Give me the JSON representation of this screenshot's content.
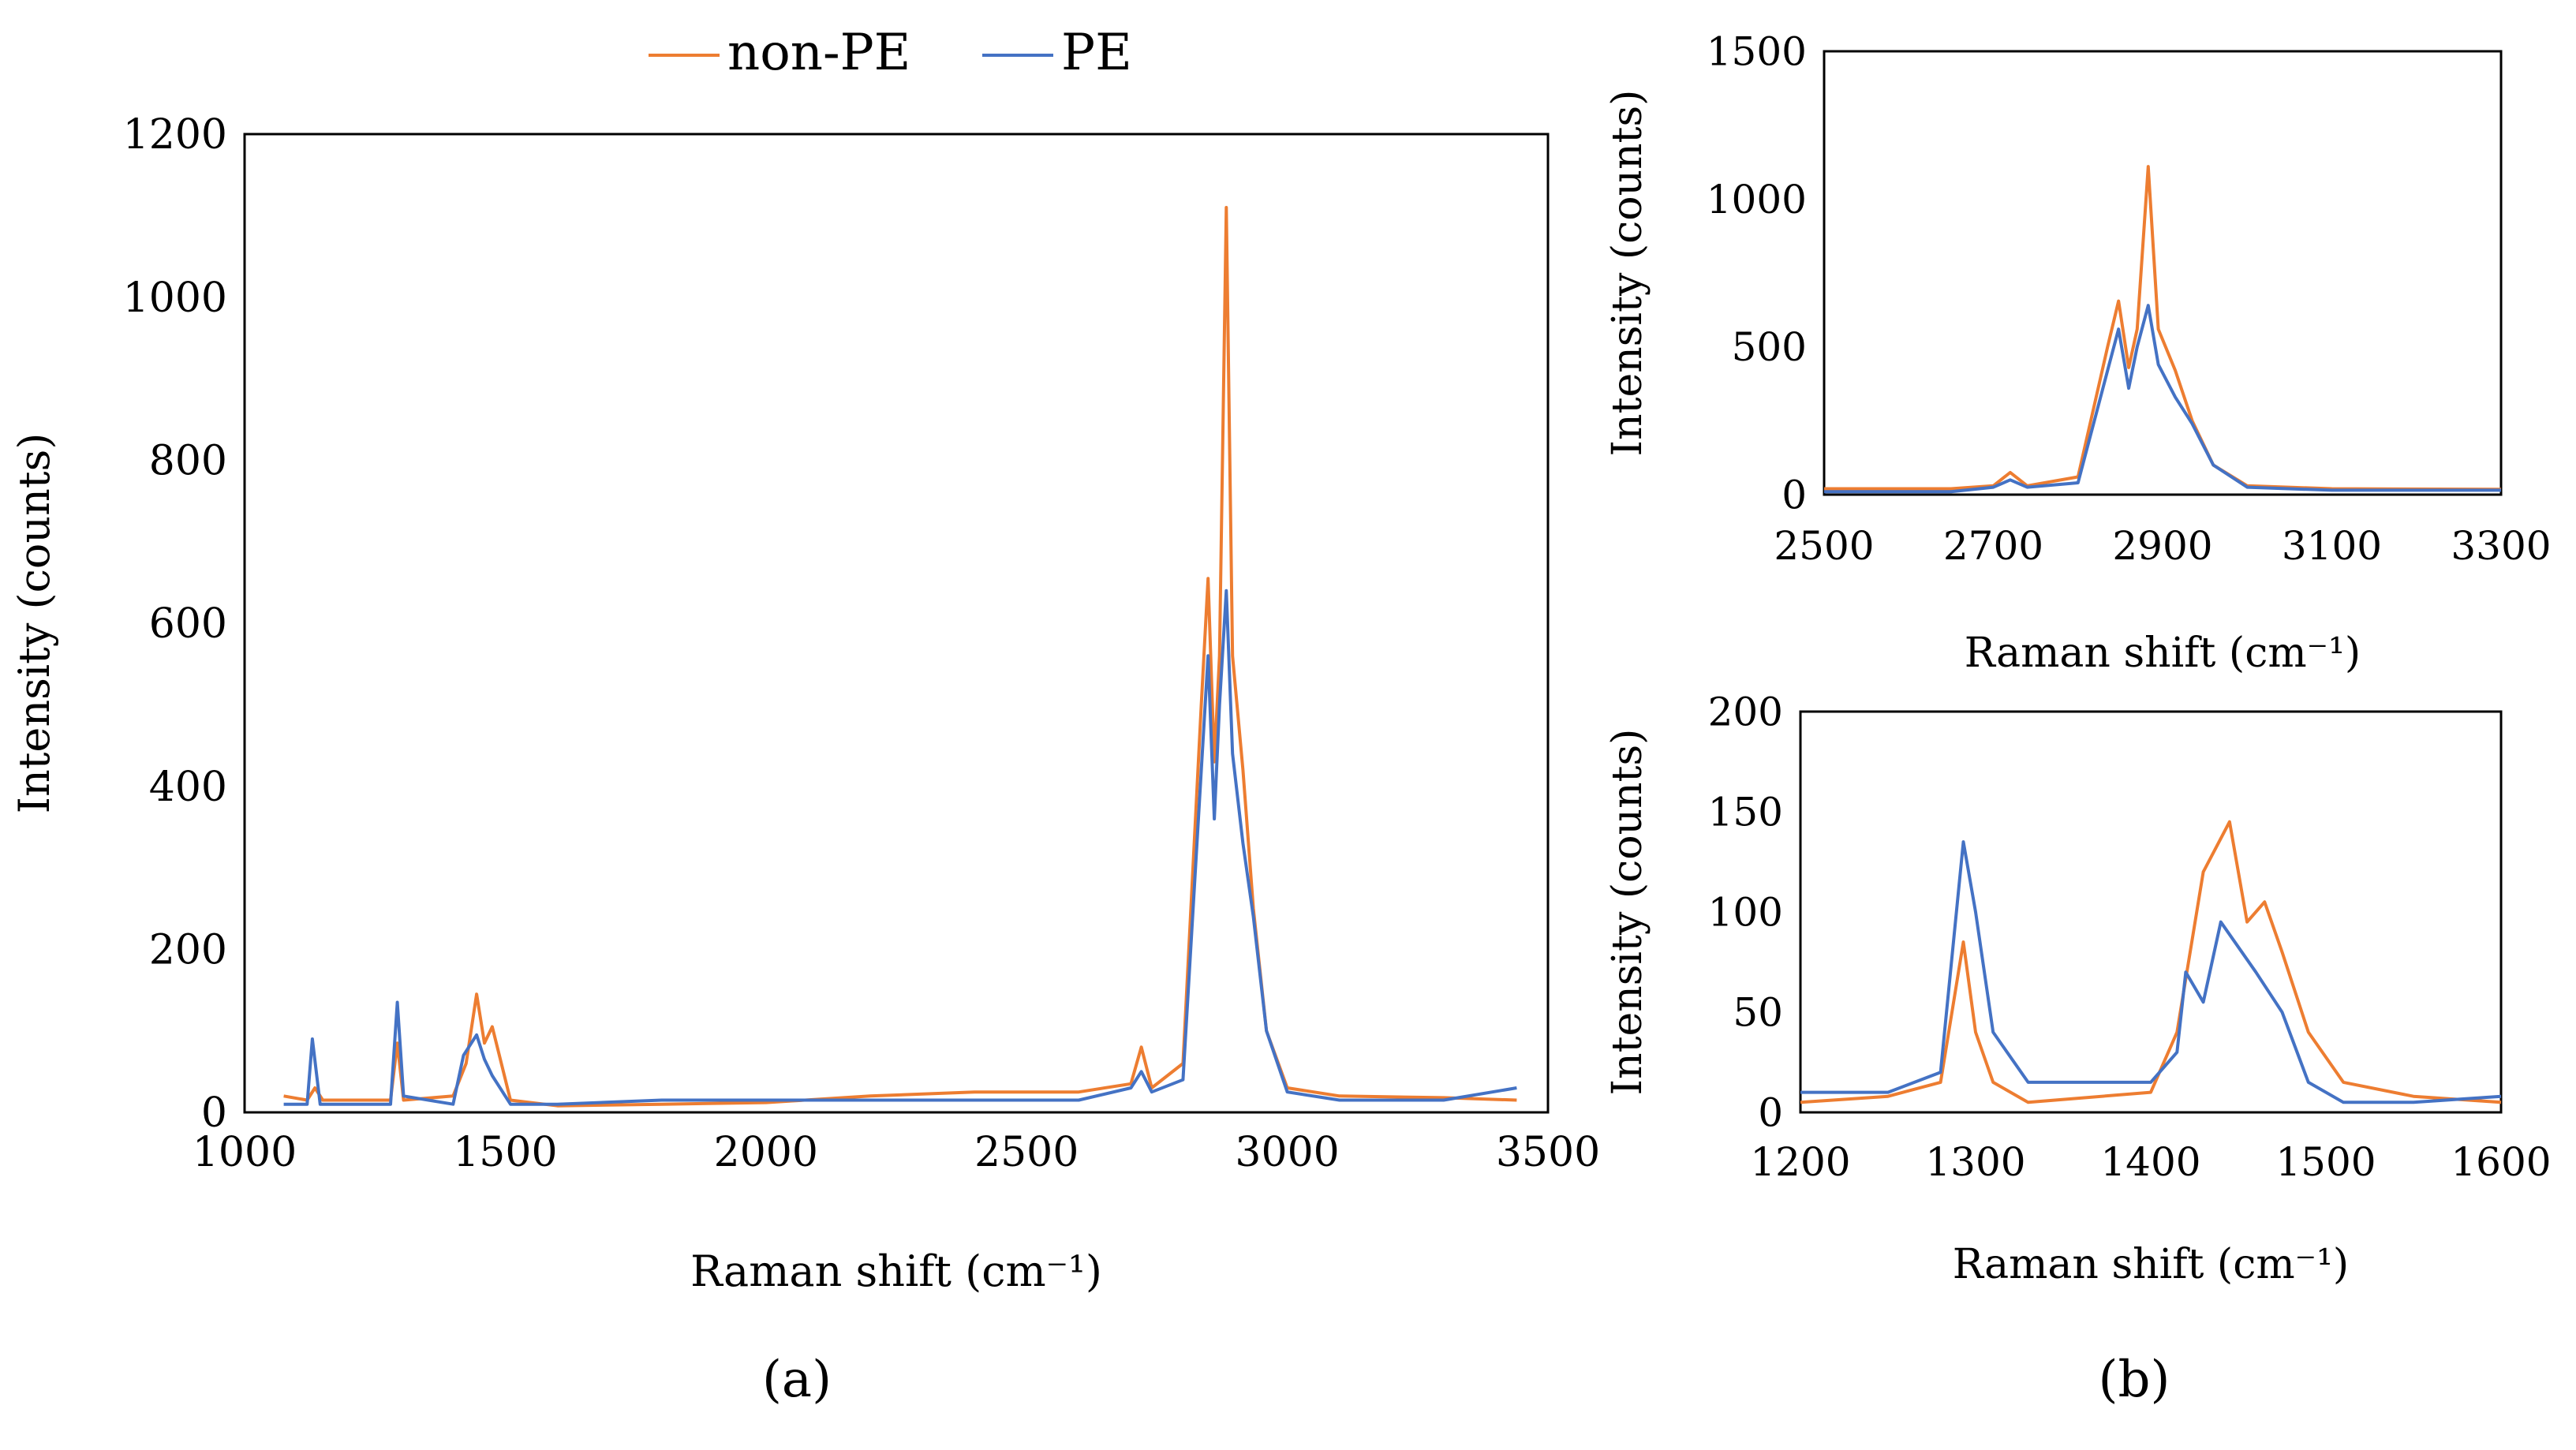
{
  "figure": {
    "legend": [
      {
        "name": "non-PE",
        "color": "#ED7D31"
      },
      {
        "name": "PE",
        "color": "#4472C4"
      }
    ],
    "panel_labels": [
      "(a)",
      "(b)"
    ]
  },
  "chart_data": [
    {
      "id": "a",
      "type": "line",
      "panel_label": "(a)",
      "title": "",
      "xlabel": "Raman shift (cm⁻¹)",
      "ylabel": "Intensity (counts)",
      "xlim": [
        1000,
        3500
      ],
      "ylim": [
        0,
        1200
      ],
      "xticks": [
        1000,
        1500,
        2000,
        2500,
        3000,
        3500
      ],
      "yticks": [
        0,
        200,
        400,
        600,
        800,
        1000,
        1200
      ],
      "grid": false,
      "legend": "top-center",
      "series": [
        {
          "name": "non-PE",
          "color": "#ED7D31",
          "x": [
            1075,
            1120,
            1135,
            1150,
            1280,
            1293,
            1305,
            1400,
            1425,
            1445,
            1460,
            1475,
            1510,
            1600,
            1800,
            2000,
            2200,
            2400,
            2600,
            2700,
            2720,
            2740,
            2800,
            2835,
            2848,
            2860,
            2870,
            2883,
            2895,
            2915,
            2935,
            2960,
            3000,
            3100,
            3300,
            3440
          ],
          "y": [
            20,
            15,
            30,
            15,
            15,
            85,
            15,
            20,
            60,
            145,
            85,
            105,
            15,
            8,
            10,
            12,
            20,
            25,
            25,
            35,
            80,
            30,
            60,
            500,
            655,
            430,
            560,
            1110,
            560,
            420,
            250,
            100,
            30,
            20,
            18,
            15
          ]
        },
        {
          "name": "PE",
          "color": "#4472C4",
          "x": [
            1075,
            1120,
            1130,
            1145,
            1280,
            1293,
            1305,
            1400,
            1420,
            1445,
            1460,
            1475,
            1510,
            1600,
            1800,
            2000,
            2200,
            2400,
            2600,
            2700,
            2720,
            2740,
            2800,
            2835,
            2848,
            2860,
            2870,
            2883,
            2895,
            2915,
            2935,
            2960,
            3000,
            3100,
            3300,
            3440
          ],
          "y": [
            10,
            10,
            90,
            10,
            10,
            135,
            20,
            10,
            70,
            95,
            65,
            45,
            10,
            10,
            15,
            15,
            15,
            15,
            15,
            30,
            50,
            25,
            40,
            420,
            560,
            360,
            500,
            640,
            440,
            330,
            240,
            100,
            25,
            15,
            15,
            30
          ]
        }
      ]
    },
    {
      "id": "b-top",
      "type": "line",
      "panel_label": "(b)",
      "title": "",
      "xlabel": "Raman shift (cm⁻¹)",
      "ylabel": "Intensity (counts)",
      "xlim": [
        2500,
        3300
      ],
      "ylim": [
        0,
        1500
      ],
      "xticks": [
        2500,
        2700,
        2900,
        3100,
        3300
      ],
      "yticks": [
        0,
        500,
        1000,
        1500
      ],
      "grid": false,
      "series": [
        {
          "name": "non-PE",
          "color": "#ED7D31",
          "x": [
            2500,
            2650,
            2700,
            2720,
            2740,
            2800,
            2835,
            2848,
            2860,
            2870,
            2883,
            2895,
            2915,
            2935,
            2960,
            3000,
            3100,
            3300
          ],
          "y": [
            20,
            20,
            30,
            75,
            30,
            60,
            500,
            655,
            430,
            560,
            1110,
            560,
            420,
            250,
            100,
            30,
            20,
            18
          ]
        },
        {
          "name": "PE",
          "color": "#4472C4",
          "x": [
            2500,
            2650,
            2700,
            2720,
            2740,
            2800,
            2835,
            2848,
            2860,
            2870,
            2883,
            2895,
            2915,
            2935,
            2960,
            3000,
            3100,
            3300
          ],
          "y": [
            10,
            10,
            25,
            50,
            25,
            40,
            420,
            560,
            360,
            500,
            640,
            440,
            330,
            240,
            100,
            25,
            15,
            15
          ]
        }
      ]
    },
    {
      "id": "b-bottom",
      "type": "line",
      "panel_label": "(b)",
      "title": "",
      "xlabel": "Raman shift (cm⁻¹)",
      "ylabel": "Intensity (counts)",
      "xlim": [
        1200,
        1600
      ],
      "ylim": [
        0,
        200
      ],
      "xticks": [
        1200,
        1300,
        1400,
        1500,
        1600
      ],
      "yticks": [
        0,
        50,
        100,
        150,
        200
      ],
      "grid": false,
      "series": [
        {
          "name": "non-PE",
          "color": "#ED7D31",
          "x": [
            1200,
            1250,
            1280,
            1293,
            1300,
            1310,
            1330,
            1400,
            1415,
            1430,
            1445,
            1455,
            1465,
            1475,
            1490,
            1510,
            1550,
            1600
          ],
          "y": [
            5,
            8,
            15,
            85,
            40,
            15,
            5,
            10,
            40,
            120,
            145,
            95,
            105,
            80,
            40,
            15,
            8,
            5
          ]
        },
        {
          "name": "PE",
          "color": "#4472C4",
          "x": [
            1200,
            1250,
            1280,
            1293,
            1300,
            1310,
            1330,
            1400,
            1415,
            1420,
            1430,
            1440,
            1460,
            1475,
            1490,
            1510,
            1550,
            1600
          ],
          "y": [
            10,
            10,
            20,
            135,
            100,
            40,
            15,
            15,
            30,
            70,
            55,
            95,
            70,
            50,
            15,
            5,
            5,
            8
          ]
        }
      ]
    }
  ]
}
